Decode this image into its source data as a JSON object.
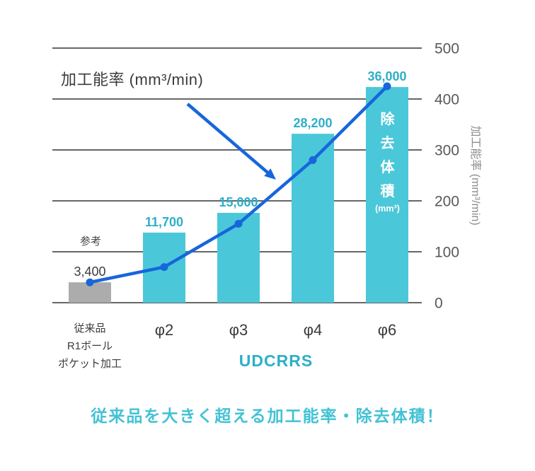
{
  "texts": {
    "annotation_title": "加工能率 (mm³/min)",
    "reference_label": "参考",
    "overlay_chars": "除去体積",
    "overlay_unit": "(mm³)",
    "group_label": "UDCRRS",
    "caption": "従来品を大きく超える加工能率・除去体積！"
  },
  "colors": {
    "bar_cyan": "#4AC8D9",
    "bar_gray": "#ACACAC",
    "line_blue": "#1766DB",
    "value_label_cyan": "#2CAFC8",
    "value_label_dark": "#3D3D3D",
    "caption_cyan": "#43C2D4",
    "grid": "#666666",
    "axis_text": "#595959",
    "category_text": "#3B3B3B"
  },
  "chart_data": {
    "type": "bar+line combo",
    "title": "加工能率 (mm³/min)",
    "categories": [
      "従来品\nR1ボール\nポケット加工",
      "φ2",
      "φ3",
      "φ4",
      "φ6"
    ],
    "category_group_label": "UDCRRS",
    "series": [
      {
        "name": "除去体積 (mm³)",
        "type": "bar",
        "values": [
          3400,
          11700,
          15000,
          28200,
          36000
        ],
        "labels": [
          "3,400",
          "11,700",
          "15,000",
          "28,200",
          "36,000"
        ],
        "axis": "hidden-left",
        "axis_max": 42500
      },
      {
        "name": "加工能率 (mm³/min)",
        "type": "line",
        "values": [
          40,
          70,
          155,
          280,
          425
        ],
        "axis": "right"
      }
    ],
    "right_axis": {
      "title": "加工能率 (mm³/min)",
      "min": 0,
      "max": 500,
      "ticks": [
        0,
        100,
        200,
        300,
        400,
        500
      ]
    },
    "grid": "horizontal",
    "legend": "none",
    "annotations": [
      {
        "text": "加工能率 (mm³/min)",
        "arrow_points_to": "line between φ3 and φ4"
      },
      {
        "text": "参考",
        "attached_to": "従来品 bar"
      },
      {
        "text": "除去体積 (mm³)",
        "attached_to": "inside φ6 bar"
      }
    ],
    "caption": "従来品を大きく超える加工能率・除去体積！"
  }
}
